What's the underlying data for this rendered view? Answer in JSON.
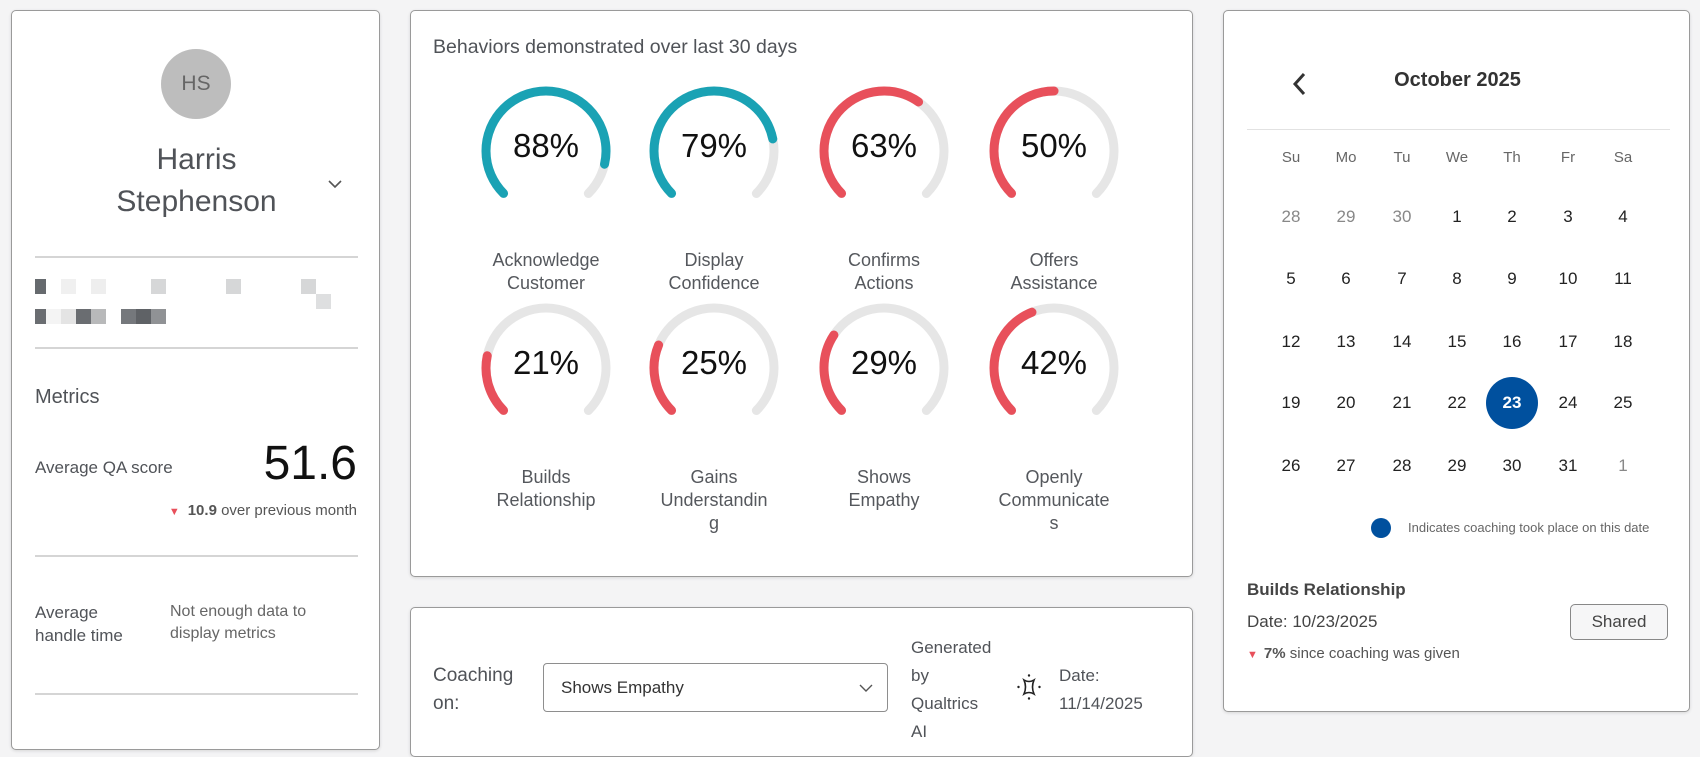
{
  "profile": {
    "initials": "HS",
    "name_line1": "Harris",
    "name_line2": "Stephenson"
  },
  "metrics": {
    "title": "Metrics",
    "qa_label": "Average QA score",
    "qa_value": "51.6",
    "qa_change": "10.9",
    "qa_change_text": " over previous month",
    "handle_label_1": "Average",
    "handle_label_2": "handle time",
    "handle_value_1": "Not enough data to",
    "handle_value_2": "display metrics"
  },
  "behaviors": {
    "title": "Behaviors demonstrated over last 30 days",
    "items": [
      {
        "pct": "88%",
        "value": 88,
        "l1": "Acknowledge",
        "l2": "Customer",
        "l3": "",
        "color": "#1aa2b4"
      },
      {
        "pct": "79%",
        "value": 79,
        "l1": "Display",
        "l2": "Confidence",
        "l3": "",
        "color": "#1aa2b4"
      },
      {
        "pct": "63%",
        "value": 63,
        "l1": "Confirms",
        "l2": "Actions",
        "l3": "",
        "color": "#e8505b"
      },
      {
        "pct": "50%",
        "value": 50,
        "l1": "Offers",
        "l2": "Assistance",
        "l3": "",
        "color": "#e8505b"
      },
      {
        "pct": "21%",
        "value": 21,
        "l1": "Builds",
        "l2": "Relationship",
        "l3": "",
        "color": "#e8505b"
      },
      {
        "pct": "25%",
        "value": 25,
        "l1": "Gains",
        "l2": "Understandin",
        "l3": "g",
        "color": "#e8505b"
      },
      {
        "pct": "29%",
        "value": 29,
        "l1": "Shows",
        "l2": "Empathy",
        "l3": "",
        "color": "#e8505b"
      },
      {
        "pct": "42%",
        "value": 42,
        "l1": "Openly",
        "l2": "Communicate",
        "l3": "s",
        "color": "#e8505b"
      }
    ],
    "track_color": "#e6e6e6"
  },
  "coaching": {
    "label_1": "Coaching",
    "label_2": "on:",
    "selected": "Shows Empathy",
    "gen_1": "Generated",
    "gen_2": "by",
    "gen_3": "Qualtrics",
    "gen_4": "AI",
    "date_1": "Date:",
    "date_2": "11/14/2025"
  },
  "calendar": {
    "month": "October 2025",
    "dow": [
      "Su",
      "Mo",
      "Tu",
      "We",
      "Th",
      "Fr",
      "Sa"
    ],
    "weeks": [
      [
        "28",
        "29",
        "30",
        "1",
        "2",
        "3",
        "4"
      ],
      [
        "5",
        "6",
        "7",
        "8",
        "9",
        "10",
        "11"
      ],
      [
        "12",
        "13",
        "14",
        "15",
        "16",
        "17",
        "18"
      ],
      [
        "19",
        "20",
        "21",
        "22",
        "23",
        "24",
        "25"
      ],
      [
        "26",
        "27",
        "28",
        "29",
        "30",
        "31",
        "1"
      ]
    ],
    "selected": "23",
    "accent": "#00509e",
    "legend": "Indicates coaching took place on this date"
  },
  "coaching_detail": {
    "title": "Builds Relationship",
    "date": "Date: 10/23/2025",
    "change": "7%",
    "change_text": " since coaching was given",
    "status": "Shared"
  }
}
